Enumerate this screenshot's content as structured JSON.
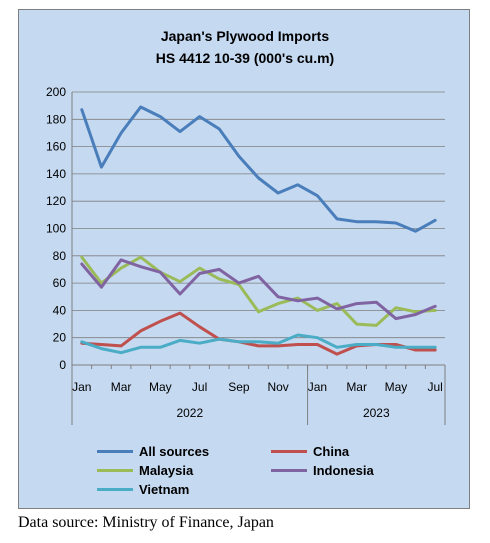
{
  "source": "Data source: Ministry of Finance, Japan",
  "chart_data": {
    "type": "line",
    "title": "Japan's Plywood Imports",
    "subtitle": "HS 4412 10-39  (000's cu.m)",
    "x_tick_labels": [
      "Jan",
      "",
      "Mar",
      "",
      "May",
      "",
      "Jul",
      "",
      "Sep",
      "",
      "Nov",
      "",
      "Jan",
      "",
      "Mar",
      "",
      "May",
      "",
      "Jul"
    ],
    "year_labels": [
      "2022",
      "2023"
    ],
    "x": [
      "2022-01",
      "2022-02",
      "2022-03",
      "2022-04",
      "2022-05",
      "2022-06",
      "2022-07",
      "2022-08",
      "2022-09",
      "2022-10",
      "2022-11",
      "2022-12",
      "2023-01",
      "2023-02",
      "2023-03",
      "2023-04",
      "2023-05",
      "2023-06",
      "2023-07"
    ],
    "ylim": [
      0,
      200
    ],
    "yticks": [
      0,
      20,
      40,
      60,
      80,
      100,
      120,
      140,
      160,
      180,
      200
    ],
    "grid": true,
    "legend_position": "bottom",
    "series": [
      {
        "name": "All sources",
        "color": "#4a7ebb",
        "values": [
          187,
          145,
          170,
          189,
          182,
          171,
          182,
          173,
          153,
          137,
          126,
          132,
          124,
          107,
          105,
          105,
          104,
          98,
          106
        ]
      },
      {
        "name": "China",
        "color": "#c0504d",
        "values": [
          16,
          15,
          14,
          25,
          32,
          38,
          28,
          19,
          17,
          14,
          14,
          15,
          15,
          8,
          14,
          15,
          15,
          11,
          11
        ]
      },
      {
        "name": "Malaysia",
        "color": "#9bbb59",
        "values": [
          79,
          60,
          71,
          79,
          68,
          61,
          71,
          63,
          59,
          39,
          45,
          49,
          40,
          45,
          30,
          29,
          42,
          39,
          40
        ]
      },
      {
        "name": "Indonesia",
        "color": "#8064a2",
        "values": [
          74,
          57,
          77,
          72,
          68,
          52,
          67,
          70,
          60,
          65,
          50,
          47,
          49,
          41,
          45,
          46,
          34,
          37,
          43
        ]
      },
      {
        "name": "Vietnam",
        "color": "#4bacc6",
        "values": [
          17,
          12,
          9,
          13,
          13,
          18,
          16,
          19,
          17,
          17,
          16,
          22,
          20,
          13,
          15,
          15,
          13,
          13,
          13
        ]
      }
    ]
  }
}
